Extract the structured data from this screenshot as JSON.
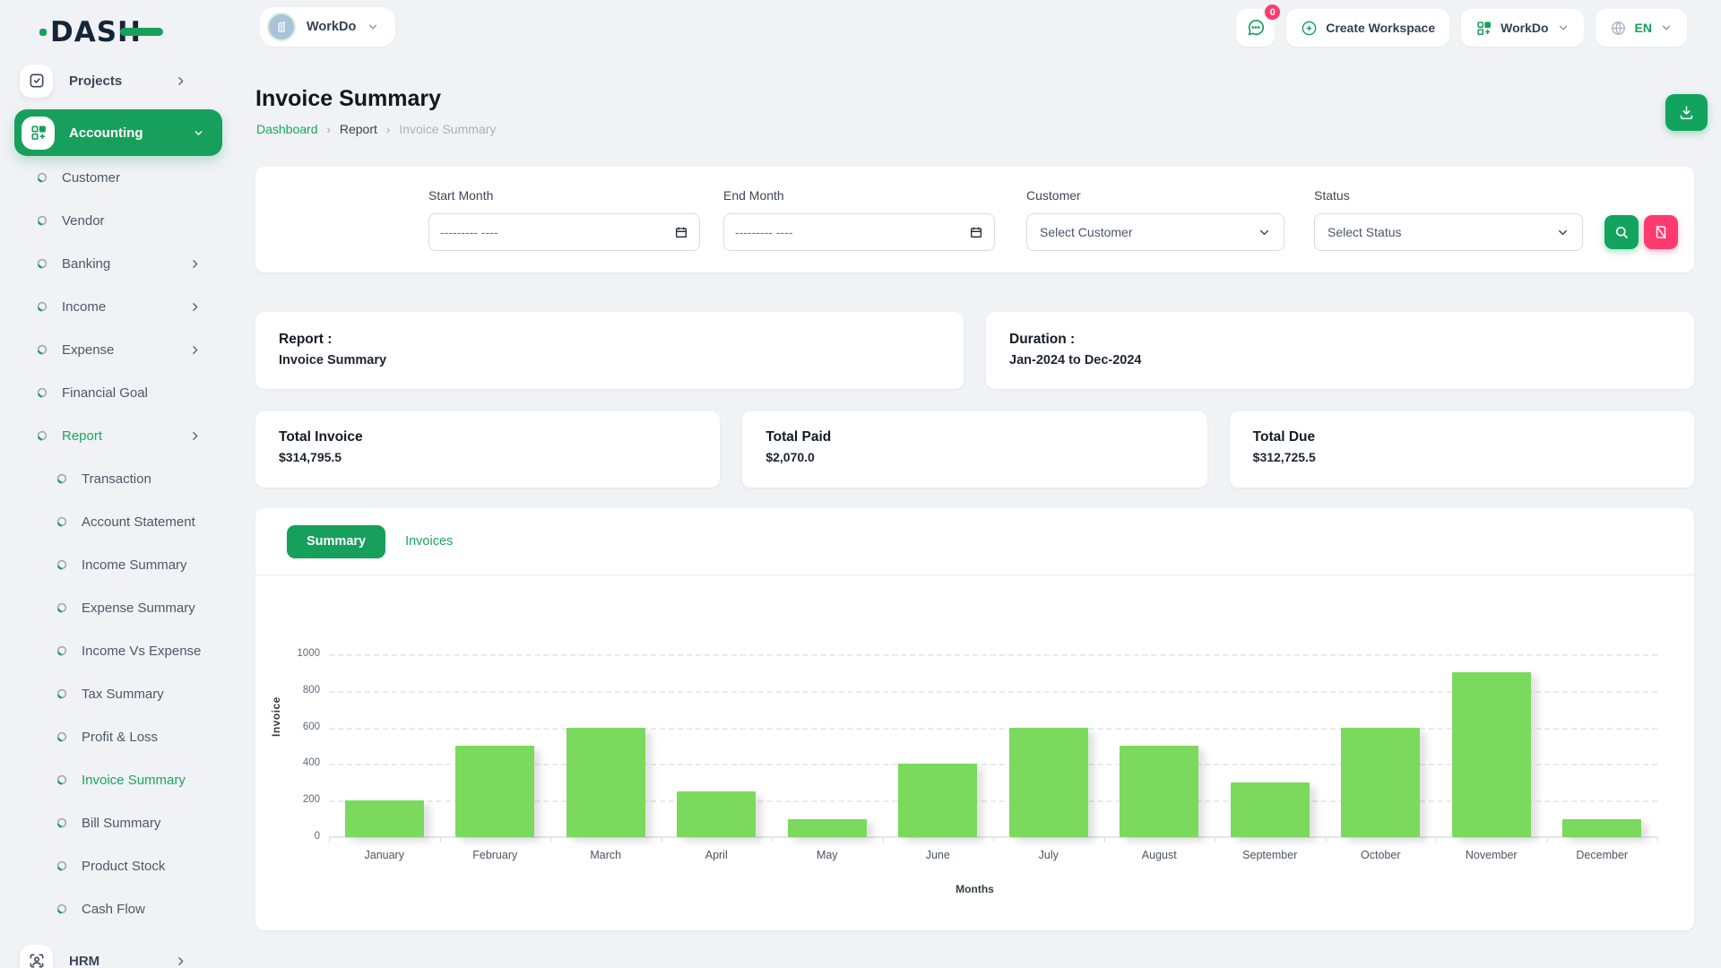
{
  "header": {
    "logo": "DASH",
    "workspace_name": "WorkDo",
    "messages_badge": "0",
    "create_workspace_label": "Create Workspace",
    "app_dropdown_label": "WorkDo",
    "language": "EN"
  },
  "sidebar": {
    "items": [
      {
        "label": "Projects",
        "level": 1,
        "icon": "checkbox-icon",
        "chevron": "right"
      },
      {
        "label": "Accounting",
        "level": 1,
        "icon": "grid-plus-icon",
        "chevron": "down",
        "active": true
      },
      {
        "label": "Customer",
        "level": 2
      },
      {
        "label": "Vendor",
        "level": 2
      },
      {
        "label": "Banking",
        "level": 2,
        "chevron": "right"
      },
      {
        "label": "Income",
        "level": 2,
        "chevron": "right"
      },
      {
        "label": "Expense",
        "level": 2,
        "chevron": "right"
      },
      {
        "label": "Financial Goal",
        "level": 2
      },
      {
        "label": "Report",
        "level": 2,
        "chevron": "right",
        "highlight": true
      },
      {
        "label": "Transaction",
        "level": 3
      },
      {
        "label": "Account Statement",
        "level": 3
      },
      {
        "label": "Income Summary",
        "level": 3
      },
      {
        "label": "Expense Summary",
        "level": 3
      },
      {
        "label": "Income Vs Expense",
        "level": 3
      },
      {
        "label": "Tax Summary",
        "level": 3
      },
      {
        "label": "Profit & Loss",
        "level": 3
      },
      {
        "label": "Invoice Summary",
        "level": 3,
        "highlight": true
      },
      {
        "label": "Bill Summary",
        "level": 3
      },
      {
        "label": "Product Stock",
        "level": 3
      },
      {
        "label": "Cash Flow",
        "level": 3
      },
      {
        "label": "HRM",
        "level": 1,
        "icon": "user-scan-icon",
        "chevron": "right"
      }
    ]
  },
  "page": {
    "title": "Invoice Summary",
    "breadcrumb": [
      {
        "label": "Dashboard",
        "type": "link"
      },
      {
        "label": "Report",
        "type": "mid"
      },
      {
        "label": "Invoice Summary",
        "type": "current"
      }
    ]
  },
  "filters": {
    "start_month_label": "Start Month",
    "end_month_label": "End Month",
    "month_placeholder": "--------- ----",
    "customer_label": "Customer",
    "customer_value": "Select Customer",
    "status_label": "Status",
    "status_value": "Select Status"
  },
  "summary": {
    "report_label": "Report :",
    "report_value": "Invoice Summary",
    "duration_label": "Duration :",
    "duration_value": "Jan-2024 to Dec-2024",
    "cards": [
      {
        "label": "Total Invoice",
        "value": "$314,795.5"
      },
      {
        "label": "Total Paid",
        "value": "$2,070.0"
      },
      {
        "label": "Total Due",
        "value": "$312,725.5"
      }
    ]
  },
  "tabs": [
    {
      "label": "Summary",
      "active": true
    },
    {
      "label": "Invoices",
      "active": false
    }
  ],
  "chart_data": {
    "type": "bar",
    "title": "",
    "categories": [
      "January",
      "February",
      "March",
      "April",
      "May",
      "June",
      "July",
      "August",
      "September",
      "October",
      "November",
      "December"
    ],
    "values": [
      200,
      500,
      600,
      250,
      100,
      400,
      600,
      500,
      300,
      600,
      900,
      100
    ],
    "xlabel": "Months",
    "ylabel": "Invoice",
    "ylim": [
      0,
      1000
    ],
    "yticks": [
      0,
      200,
      400,
      600,
      800,
      1000
    ],
    "grid": "dashed-horizontal",
    "legend": "none",
    "bar_color": "#7bd95e"
  },
  "colors": {
    "primary_green": "#16a05c",
    "bar_green": "#7bd95e",
    "pink": "#ff3a6e",
    "page_bg": "#f0f2f5"
  }
}
